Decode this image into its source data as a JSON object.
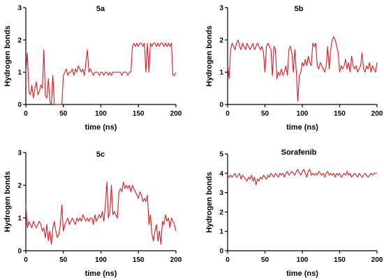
{
  "chart_data": [
    {
      "type": "line",
      "title": "5a",
      "xlabel": "time (ns)",
      "ylabel": "Hydrogen bonds",
      "xlim": [
        0,
        200
      ],
      "ylim": [
        0,
        3
      ],
      "xticks": [
        "0",
        "50",
        "100",
        "150",
        "200"
      ],
      "yticks": [
        "0",
        "1",
        "2",
        "3"
      ],
      "color": "#e8141c",
      "series": [
        {
          "x": [
            0,
            2,
            4,
            6,
            8,
            10,
            12,
            14,
            16,
            18,
            20,
            22,
            24,
            26,
            28,
            30,
            32,
            34,
            36,
            38,
            40,
            42,
            44,
            46,
            48,
            50,
            52,
            54,
            56,
            58,
            60,
            62,
            64,
            66,
            68,
            70,
            72,
            74,
            76,
            78,
            80,
            82,
            84,
            86,
            88,
            90,
            92,
            94,
            96,
            98,
            100,
            102,
            104,
            106,
            108,
            110,
            112,
            114,
            116,
            118,
            120,
            122,
            124,
            126,
            128,
            130,
            132,
            134,
            136,
            138,
            140,
            142,
            144,
            146,
            148,
            150,
            152,
            154,
            156,
            158,
            160,
            162,
            164,
            166,
            168,
            170,
            172,
            174,
            176,
            178,
            180,
            182,
            184,
            186,
            188,
            190,
            192,
            194,
            196,
            198,
            200
          ],
          "values": [
            1.0,
            1.6,
            0.4,
            0.3,
            0.6,
            0.2,
            0.5,
            0.7,
            0.3,
            0.4,
            0.6,
            0.5,
            1.7,
            0.3,
            0.2,
            0.8,
            0.1,
            0.0,
            0.9,
            0.0,
            0.0,
            0.0,
            0.0,
            0.0,
            0.0,
            0.9,
            1.0,
            1.1,
            0.9,
            1.0,
            1.0,
            1.1,
            0.9,
            1.1,
            1.0,
            1.2,
            1.1,
            1.0,
            1.1,
            0.9,
            1.3,
            1.7,
            1.0,
            1.1,
            1.0,
            0.9,
            1.0,
            1.0,
            1.0,
            0.9,
            1.0,
            1.0,
            0.9,
            1.0,
            1.0,
            0.9,
            1.0,
            0.9,
            1.0,
            1.0,
            1.0,
            1.0,
            1.0,
            1.0,
            0.9,
            1.0,
            1.0,
            1.0,
            0.9,
            1.0,
            1.0,
            1.8,
            1.9,
            1.8,
            1.9,
            1.8,
            1.9,
            1.9,
            1.8,
            1.9,
            1.0,
            1.9,
            1.0,
            1.9,
            1.8,
            1.9,
            1.9,
            1.8,
            1.9,
            1.8,
            1.9,
            1.9,
            1.8,
            1.9,
            1.8,
            1.9,
            1.8,
            1.9,
            0.9,
            0.9,
            1.0
          ]
        }
      ]
    },
    {
      "type": "line",
      "title": "5b",
      "xlabel": "time (ns)",
      "ylabel": "Hydrogen bonds",
      "xlim": [
        0,
        200
      ],
      "ylim": [
        0,
        3
      ],
      "xticks": [
        "0",
        "50",
        "100",
        "150",
        "200"
      ],
      "yticks": [
        "0",
        "1",
        "2",
        "3"
      ],
      "color": "#e8141c",
      "series": [
        {
          "x": [
            0,
            2,
            4,
            6,
            8,
            10,
            12,
            14,
            16,
            18,
            20,
            22,
            24,
            26,
            28,
            30,
            32,
            34,
            36,
            38,
            40,
            42,
            44,
            46,
            48,
            50,
            52,
            54,
            56,
            58,
            60,
            62,
            64,
            66,
            68,
            70,
            72,
            74,
            76,
            78,
            80,
            82,
            84,
            86,
            88,
            90,
            92,
            94,
            96,
            98,
            100,
            102,
            104,
            106,
            108,
            110,
            112,
            114,
            116,
            118,
            120,
            122,
            124,
            126,
            128,
            130,
            132,
            134,
            136,
            138,
            140,
            142,
            144,
            146,
            148,
            150,
            152,
            154,
            156,
            158,
            160,
            162,
            164,
            166,
            168,
            170,
            172,
            174,
            176,
            178,
            180,
            182,
            184,
            186,
            188,
            190,
            192,
            194,
            196,
            198,
            200
          ],
          "values": [
            1.2,
            0.8,
            1.7,
            1.9,
            1.8,
            1.7,
            1.9,
            2.0,
            1.8,
            1.7,
            1.9,
            1.8,
            1.7,
            1.9,
            1.8,
            1.7,
            1.8,
            1.9,
            1.7,
            1.8,
            1.9,
            1.8,
            1.7,
            1.8,
            1.6,
            1.0,
            1.8,
            1.9,
            1.8,
            1.7,
            0.9,
            1.8,
            1.7,
            0.8,
            1.0,
            0.9,
            1.1,
            0.9,
            1.0,
            1.2,
            0.9,
            1.7,
            1.8,
            1.6,
            1.0,
            1.7,
            1.0,
            0.1,
            0.9,
            1.0,
            1.3,
            1.2,
            1.4,
            1.2,
            1.5,
            1.3,
            1.2,
            1.9,
            1.8,
            1.9,
            1.2,
            1.1,
            1.3,
            1.2,
            1.1,
            1.0,
            1.2,
            1.8,
            1.1,
            1.7,
            2.0,
            2.1,
            2.0,
            1.8,
            1.6,
            1.0,
            1.2,
            1.1,
            1.2,
            1.4,
            1.1,
            1.3,
            1.0,
            1.5,
            1.2,
            1.1,
            1.2,
            1.0,
            1.1,
            1.2,
            1.6,
            1.1,
            1.0,
            1.2,
            1.1,
            1.3,
            1.0,
            1.2,
            1.1,
            1.0,
            1.3
          ]
        }
      ]
    },
    {
      "type": "line",
      "title": "5c",
      "xlabel": "time (ns)",
      "ylabel": "Hydrogen bonds",
      "xlim": [
        0,
        200
      ],
      "ylim": [
        0,
        3
      ],
      "xticks": [
        "0",
        "50",
        "100",
        "150",
        "200"
      ],
      "yticks": [
        "0",
        "1",
        "2",
        "3"
      ],
      "color": "#e8141c",
      "series": [
        {
          "x": [
            0,
            2,
            4,
            6,
            8,
            10,
            12,
            14,
            16,
            18,
            20,
            22,
            24,
            26,
            28,
            30,
            32,
            34,
            36,
            38,
            40,
            42,
            44,
            46,
            48,
            50,
            52,
            54,
            56,
            58,
            60,
            62,
            64,
            66,
            68,
            70,
            72,
            74,
            76,
            78,
            80,
            82,
            84,
            86,
            88,
            90,
            92,
            94,
            96,
            98,
            100,
            102,
            104,
            106,
            108,
            110,
            112,
            114,
            116,
            118,
            120,
            122,
            124,
            126,
            128,
            130,
            132,
            134,
            136,
            138,
            140,
            142,
            144,
            146,
            148,
            150,
            152,
            154,
            156,
            158,
            160,
            162,
            164,
            166,
            168,
            170,
            172,
            174,
            176,
            178,
            180,
            182,
            184,
            186,
            188,
            190,
            192,
            194,
            196,
            198,
            200
          ],
          "values": [
            1.4,
            0.7,
            0.9,
            0.8,
            0.7,
            0.9,
            0.8,
            0.7,
            0.8,
            0.9,
            0.8,
            0.6,
            0.7,
            0.4,
            0.8,
            0.3,
            0.6,
            0.2,
            0.7,
            0.9,
            0.6,
            0.4,
            0.5,
            0.8,
            1.4,
            0.6,
            0.8,
            0.9,
            1.0,
            0.8,
            0.9,
            1.0,
            0.9,
            0.8,
            1.0,
            0.9,
            1.0,
            0.9,
            1.1,
            1.0,
            0.9,
            1.0,
            0.9,
            1.0,
            1.0,
            0.8,
            1.1,
            0.9,
            1.0,
            1.1,
            1.0,
            1.2,
            0.9,
            1.4,
            2.1,
            1.0,
            1.2,
            2.0,
            1.1,
            1.2,
            1.1,
            1.0,
            1.8,
            1.9,
            1.8,
            2.1,
            1.9,
            2.0,
            1.9,
            2.0,
            1.8,
            2.0,
            1.9,
            1.8,
            1.7,
            1.6,
            1.8,
            1.7,
            1.5,
            1.6,
            1.5,
            1.7,
            0.8,
            1.1,
            0.5,
            0.3,
            0.6,
            0.8,
            0.3,
            0.6,
            0.2,
            0.9,
            0.8,
            1.1,
            0.9,
            1.0,
            0.7,
            1.0,
            0.9,
            0.8,
            0.6
          ]
        }
      ]
    },
    {
      "type": "line",
      "title": "Sorafenib",
      "xlabel": "time (ns)",
      "ylabel": "Hydrogen bonds",
      "xlim": [
        0,
        200
      ],
      "ylim": [
        0,
        5
      ],
      "xticks": [
        "0",
        "50",
        "100",
        "150",
        "200"
      ],
      "yticks": [
        "0",
        "1",
        "2",
        "3",
        "4",
        "5"
      ],
      "color": "#e8141c",
      "series": [
        {
          "x": [
            0,
            2,
            4,
            6,
            8,
            10,
            12,
            14,
            16,
            18,
            20,
            22,
            24,
            26,
            28,
            30,
            32,
            34,
            36,
            38,
            40,
            42,
            44,
            46,
            48,
            50,
            52,
            54,
            56,
            58,
            60,
            62,
            64,
            66,
            68,
            70,
            72,
            74,
            76,
            78,
            80,
            82,
            84,
            86,
            88,
            90,
            92,
            94,
            96,
            98,
            100,
            102,
            104,
            106,
            108,
            110,
            112,
            114,
            116,
            118,
            120,
            122,
            124,
            126,
            128,
            130,
            132,
            134,
            136,
            138,
            140,
            142,
            144,
            146,
            148,
            150,
            152,
            154,
            156,
            158,
            160,
            162,
            164,
            166,
            168,
            170,
            172,
            174,
            176,
            178,
            180,
            182,
            184,
            186,
            188,
            190,
            192,
            194,
            196,
            198,
            200
          ],
          "values": [
            3.9,
            3.8,
            3.9,
            3.8,
            3.9,
            4.0,
            3.8,
            3.9,
            4.0,
            3.7,
            3.9,
            3.8,
            3.7,
            3.6,
            3.8,
            3.7,
            3.9,
            3.6,
            3.8,
            3.4,
            3.7,
            3.6,
            3.8,
            3.7,
            3.9,
            3.8,
            3.7,
            3.9,
            3.8,
            4.0,
            3.9,
            3.8,
            4.0,
            3.9,
            3.8,
            4.0,
            3.9,
            4.0,
            3.8,
            4.0,
            4.1,
            3.9,
            4.0,
            4.1,
            4.0,
            3.9,
            4.1,
            4.2,
            4.0,
            3.9,
            4.1,
            4.2,
            4.0,
            3.8,
            4.1,
            4.2,
            3.9,
            4.0,
            3.9,
            4.0,
            3.9,
            4.1,
            4.0,
            3.9,
            4.0,
            3.8,
            4.0,
            4.1,
            3.9,
            4.0,
            3.9,
            4.0,
            3.8,
            4.0,
            3.9,
            4.0,
            3.8,
            3.9,
            4.0,
            3.9,
            4.1,
            3.9,
            4.0,
            3.8,
            3.9,
            4.0,
            3.9,
            3.8,
            4.0,
            3.9,
            3.8,
            3.9,
            4.0,
            3.9,
            3.8,
            3.9,
            4.0,
            3.9,
            4.0,
            4.0,
            4.0
          ]
        }
      ]
    }
  ]
}
